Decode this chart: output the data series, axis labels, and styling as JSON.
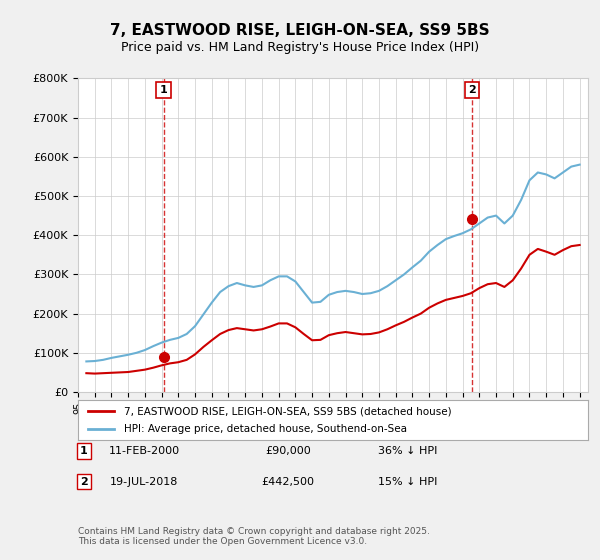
{
  "title": "7, EASTWOOD RISE, LEIGH-ON-SEA, SS9 5BS",
  "subtitle": "Price paid vs. HM Land Registry's House Price Index (HPI)",
  "ylabel_ticks": [
    "£0",
    "£100K",
    "£200K",
    "£300K",
    "£400K",
    "£500K",
    "£600K",
    "£700K",
    "£800K"
  ],
  "ylim": [
    0,
    800000
  ],
  "xlim_start": 1995.0,
  "xlim_end": 2025.5,
  "purchase1": {
    "year": 2000.12,
    "price": 90000,
    "label": "1",
    "date": "11-FEB-2000",
    "pct": "36% ↓ HPI"
  },
  "purchase2": {
    "year": 2018.55,
    "price": 442500,
    "label": "2",
    "date": "19-JUL-2018",
    "pct": "15% ↓ HPI"
  },
  "line_red_color": "#cc0000",
  "line_blue_color": "#6ab0d4",
  "vline_color": "#cc0000",
  "background_color": "#f0f0f0",
  "plot_bg_color": "#ffffff",
  "legend_line1": "7, EASTWOOD RISE, LEIGH-ON-SEA, SS9 5BS (detached house)",
  "legend_line2": "HPI: Average price, detached house, Southend-on-Sea",
  "footer": "Contains HM Land Registry data © Crown copyright and database right 2025.\nThis data is licensed under the Open Government Licence v3.0.",
  "title_fontsize": 11,
  "subtitle_fontsize": 9,
  "hpi_data": {
    "years": [
      1995.5,
      1996.0,
      1996.5,
      1997.0,
      1997.5,
      1998.0,
      1998.5,
      1999.0,
      1999.5,
      2000.0,
      2000.5,
      2001.0,
      2001.5,
      2002.0,
      2002.5,
      2003.0,
      2003.5,
      2004.0,
      2004.5,
      2005.0,
      2005.5,
      2006.0,
      2006.5,
      2007.0,
      2007.5,
      2008.0,
      2008.5,
      2009.0,
      2009.5,
      2010.0,
      2010.5,
      2011.0,
      2011.5,
      2012.0,
      2012.5,
      2013.0,
      2013.5,
      2014.0,
      2014.5,
      2015.0,
      2015.5,
      2016.0,
      2016.5,
      2017.0,
      2017.5,
      2018.0,
      2018.5,
      2019.0,
      2019.5,
      2020.0,
      2020.5,
      2021.0,
      2021.5,
      2022.0,
      2022.5,
      2023.0,
      2023.5,
      2024.0,
      2024.5,
      2025.0
    ],
    "values": [
      78000,
      79000,
      82000,
      87000,
      91000,
      95000,
      100000,
      107000,
      117000,
      126000,
      133000,
      138000,
      148000,
      168000,
      198000,
      228000,
      255000,
      270000,
      278000,
      272000,
      268000,
      272000,
      285000,
      295000,
      295000,
      282000,
      255000,
      228000,
      230000,
      248000,
      255000,
      258000,
      255000,
      250000,
      252000,
      258000,
      270000,
      285000,
      300000,
      318000,
      335000,
      358000,
      375000,
      390000,
      398000,
      405000,
      415000,
      430000,
      445000,
      450000,
      430000,
      450000,
      490000,
      540000,
      560000,
      555000,
      545000,
      560000,
      575000,
      580000
    ]
  },
  "red_data": {
    "years": [
      1995.5,
      1996.0,
      1996.5,
      1997.0,
      1997.5,
      1998.0,
      1998.5,
      1999.0,
      1999.5,
      2000.0,
      2000.5,
      2001.0,
      2001.5,
      2002.0,
      2002.5,
      2003.0,
      2003.5,
      2004.0,
      2004.5,
      2005.0,
      2005.5,
      2006.0,
      2006.5,
      2007.0,
      2007.5,
      2008.0,
      2008.5,
      2009.0,
      2009.5,
      2010.0,
      2010.5,
      2011.0,
      2011.5,
      2012.0,
      2012.5,
      2013.0,
      2013.5,
      2014.0,
      2014.5,
      2015.0,
      2015.5,
      2016.0,
      2016.5,
      2017.0,
      2017.5,
      2018.0,
      2018.5,
      2019.0,
      2019.5,
      2020.0,
      2020.5,
      2021.0,
      2021.5,
      2022.0,
      2022.5,
      2023.0,
      2023.5,
      2024.0,
      2024.5,
      2025.0
    ],
    "values": [
      48000,
      47000,
      48000,
      49000,
      50000,
      51000,
      54000,
      57000,
      62000,
      68000,
      73000,
      76000,
      82000,
      96000,
      115000,
      132000,
      148000,
      158000,
      163000,
      160000,
      157000,
      160000,
      167000,
      175000,
      175000,
      165000,
      148000,
      132000,
      133000,
      145000,
      150000,
      153000,
      150000,
      147000,
      148000,
      152000,
      160000,
      170000,
      179000,
      190000,
      200000,
      215000,
      226000,
      235000,
      240000,
      245000,
      252000,
      265000,
      275000,
      278000,
      268000,
      285000,
      315000,
      350000,
      365000,
      358000,
      350000,
      362000,
      372000,
      375000
    ]
  }
}
